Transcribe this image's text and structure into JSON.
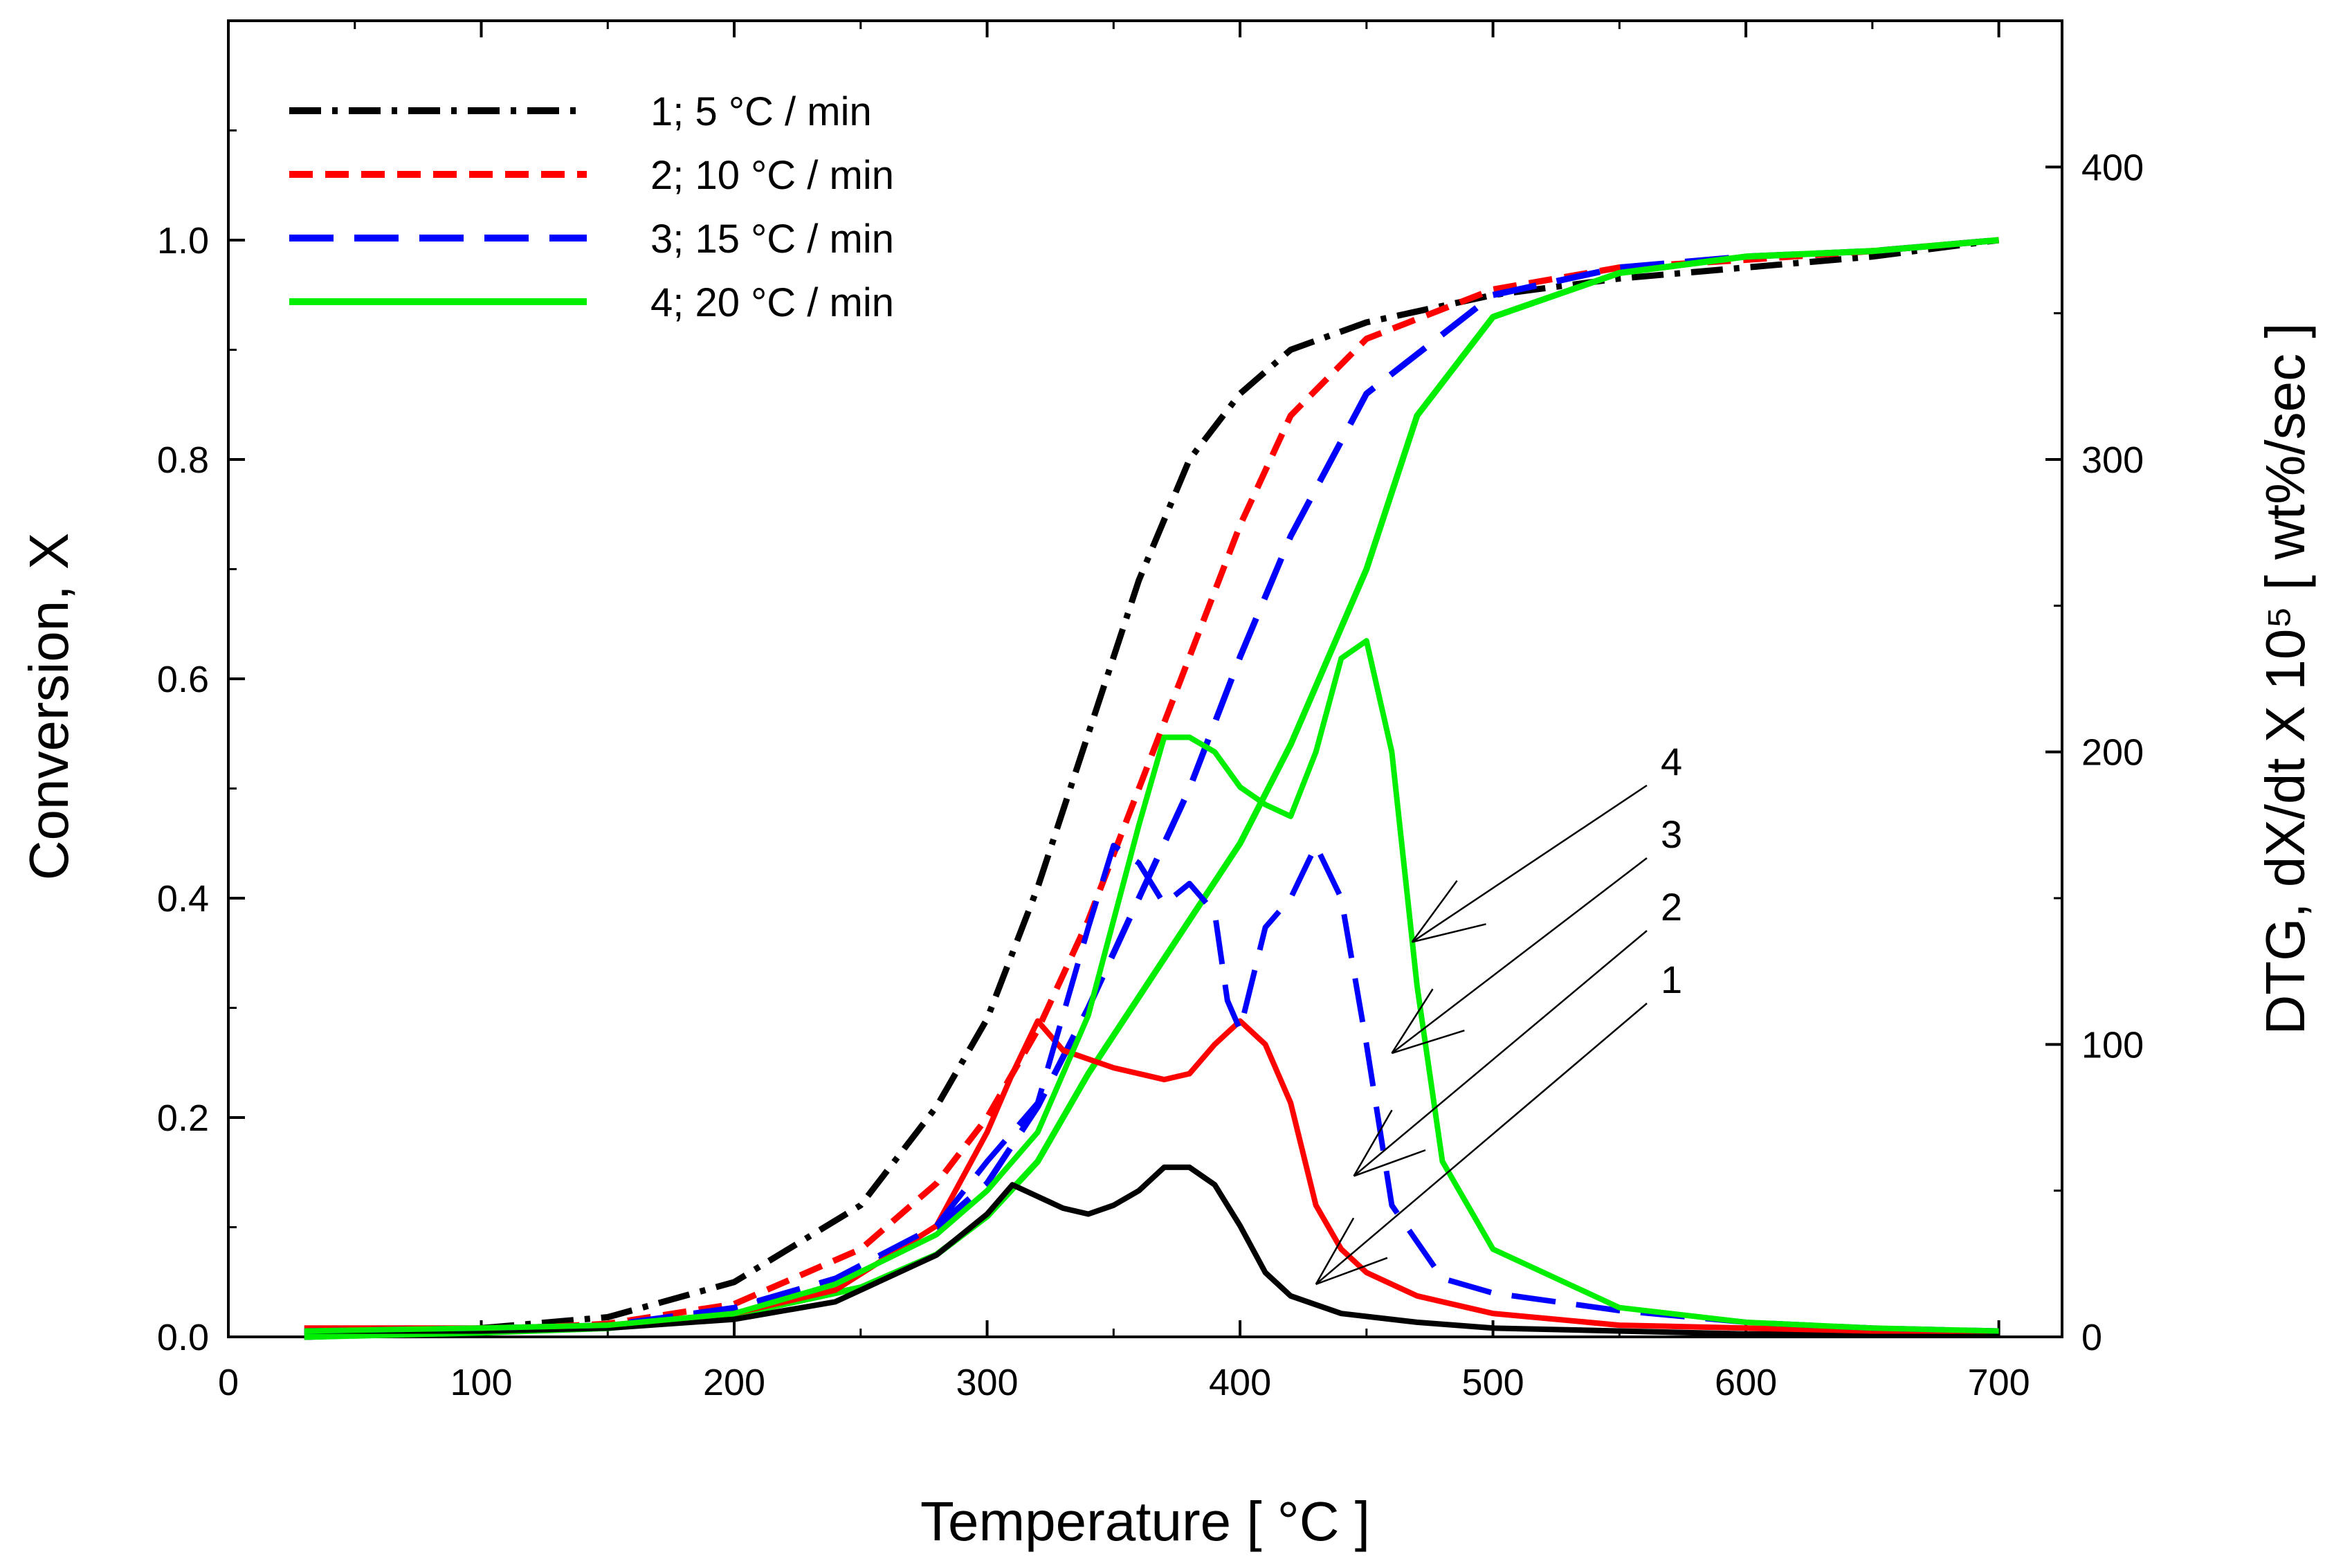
{
  "chart_data": {
    "type": "line",
    "title": "",
    "xlabel": "Temperature [ °C ]",
    "ylabel": "Conversion, X",
    "y2label": "DTG, dX/dt X 10⁵ [ wt%/sec ]",
    "xlim": [
      0,
      725
    ],
    "ylim": [
      0,
      1.2
    ],
    "y2lim": [
      0,
      450
    ],
    "xticks": [
      0,
      100,
      200,
      300,
      400,
      500,
      600,
      700
    ],
    "xtick_labels": [
      "0",
      "100",
      "200",
      "300",
      "400",
      "500",
      "600",
      "700"
    ],
    "yticks": [
      0.0,
      0.2,
      0.4,
      0.6,
      0.8,
      1.0
    ],
    "ytick_labels": [
      "0.0",
      "0.2",
      "0.4",
      "0.6",
      "0.8",
      "1.0"
    ],
    "y2ticks": [
      0,
      100,
      200,
      300,
      400
    ],
    "y2tick_labels": [
      "0",
      "100",
      "200",
      "300",
      "400"
    ],
    "legend_position": "top-left",
    "legend": [
      {
        "label": "1;   5 °C / min",
        "color": "#000000",
        "dash": "dashdot"
      },
      {
        "label": "2; 10 °C / min",
        "color": "#ff0000",
        "dash": "short-dash"
      },
      {
        "label": "3; 15 °C / min",
        "color": "#0000ff",
        "dash": "long-dash"
      },
      {
        "label": "4; 20 °C / min",
        "color": "#00ee00",
        "dash": "solid"
      }
    ],
    "series_conversion": [
      {
        "name": "1",
        "color": "#000000",
        "dash": "dashdot",
        "x": [
          30,
          100,
          150,
          200,
          250,
          280,
          300,
          320,
          340,
          360,
          380,
          400,
          420,
          450,
          500,
          550,
          600,
          650,
          700
        ],
        "y": [
          0.0,
          0.008,
          0.018,
          0.05,
          0.12,
          0.21,
          0.29,
          0.41,
          0.55,
          0.69,
          0.8,
          0.86,
          0.9,
          0.925,
          0.95,
          0.965,
          0.975,
          0.985,
          1.0
        ]
      },
      {
        "name": "2",
        "color": "#ff0000",
        "dash": "short-dash",
        "x": [
          30,
          100,
          150,
          200,
          250,
          280,
          300,
          320,
          340,
          360,
          380,
          400,
          420,
          450,
          500,
          550,
          600,
          650,
          700
        ],
        "y": [
          0.0,
          0.006,
          0.012,
          0.03,
          0.08,
          0.14,
          0.2,
          0.28,
          0.38,
          0.5,
          0.62,
          0.74,
          0.84,
          0.91,
          0.955,
          0.975,
          0.982,
          0.99,
          1.0
        ]
      },
      {
        "name": "3",
        "color": "#0000ff",
        "dash": "long-dash",
        "x": [
          30,
          100,
          150,
          200,
          250,
          280,
          300,
          320,
          340,
          360,
          380,
          400,
          420,
          450,
          500,
          550,
          600,
          650,
          700
        ],
        "y": [
          0.0,
          0.005,
          0.01,
          0.025,
          0.06,
          0.1,
          0.14,
          0.21,
          0.3,
          0.4,
          0.5,
          0.62,
          0.73,
          0.86,
          0.95,
          0.975,
          0.985,
          0.99,
          1.0
        ]
      },
      {
        "name": "4",
        "color": "#00ee00",
        "dash": "solid",
        "x": [
          30,
          100,
          150,
          200,
          250,
          280,
          300,
          320,
          340,
          360,
          380,
          400,
          420,
          450,
          470,
          500,
          550,
          600,
          650,
          700
        ],
        "y": [
          0.0,
          0.004,
          0.008,
          0.02,
          0.045,
          0.075,
          0.11,
          0.16,
          0.24,
          0.31,
          0.38,
          0.45,
          0.54,
          0.7,
          0.84,
          0.93,
          0.97,
          0.985,
          0.99,
          1.0
        ]
      }
    ],
    "series_dtg": [
      {
        "name": "1",
        "color": "#000000",
        "x": [
          30,
          100,
          150,
          200,
          240,
          280,
          300,
          310,
          320,
          330,
          340,
          350,
          360,
          370,
          380,
          390,
          400,
          410,
          420,
          440,
          470,
          500,
          550,
          600,
          650,
          700
        ],
        "y": [
          2,
          2,
          3,
          6,
          12,
          28,
          42,
          52,
          48,
          44,
          42,
          45,
          50,
          58,
          58,
          52,
          38,
          22,
          14,
          8,
          5,
          3,
          2,
          1,
          1,
          1
        ]
      },
      {
        "name": "2",
        "color": "#ff0000",
        "x": [
          30,
          100,
          150,
          200,
          240,
          280,
          300,
          310,
          320,
          330,
          340,
          350,
          360,
          370,
          380,
          390,
          400,
          410,
          420,
          430,
          440,
          450,
          470,
          500,
          550,
          600,
          650,
          700
        ],
        "y": [
          3,
          3,
          4,
          8,
          16,
          38,
          70,
          90,
          108,
          98,
          95,
          92,
          90,
          88,
          90,
          100,
          108,
          100,
          80,
          45,
          30,
          22,
          14,
          8,
          4,
          3,
          2,
          2
        ]
      },
      {
        "name": "3",
        "color": "#0000ff",
        "x": [
          30,
          100,
          150,
          200,
          240,
          280,
          300,
          320,
          330,
          340,
          350,
          355,
          360,
          370,
          380,
          390,
          395,
          400,
          410,
          420,
          430,
          440,
          450,
          460,
          480,
          500,
          550,
          600,
          650,
          700
        ],
        "y": [
          2,
          3,
          4,
          10,
          20,
          38,
          60,
          80,
          110,
          140,
          168,
          165,
          162,
          148,
          155,
          145,
          115,
          105,
          140,
          150,
          168,
          150,
          100,
          45,
          20,
          15,
          9,
          5,
          3,
          2
        ]
      },
      {
        "name": "4",
        "color": "#00ee00",
        "x": [
          30,
          100,
          150,
          200,
          240,
          280,
          300,
          320,
          340,
          360,
          370,
          380,
          390,
          400,
          410,
          420,
          430,
          440,
          450,
          460,
          470,
          480,
          500,
          550,
          600,
          650,
          700
        ],
        "y": [
          2,
          3,
          4,
          8,
          18,
          35,
          50,
          70,
          110,
          175,
          205,
          205,
          200,
          188,
          182,
          178,
          200,
          232,
          238,
          200,
          120,
          60,
          30,
          10,
          5,
          3,
          2
        ]
      }
    ],
    "annotations": [
      {
        "label": "4",
        "target_x": 468,
        "target_dtg": 135
      },
      {
        "label": "3",
        "target_x": 460,
        "target_dtg": 97
      },
      {
        "label": "2",
        "target_x": 445,
        "target_dtg": 55
      },
      {
        "label": "1",
        "target_x": 430,
        "target_dtg": 18
      }
    ]
  }
}
